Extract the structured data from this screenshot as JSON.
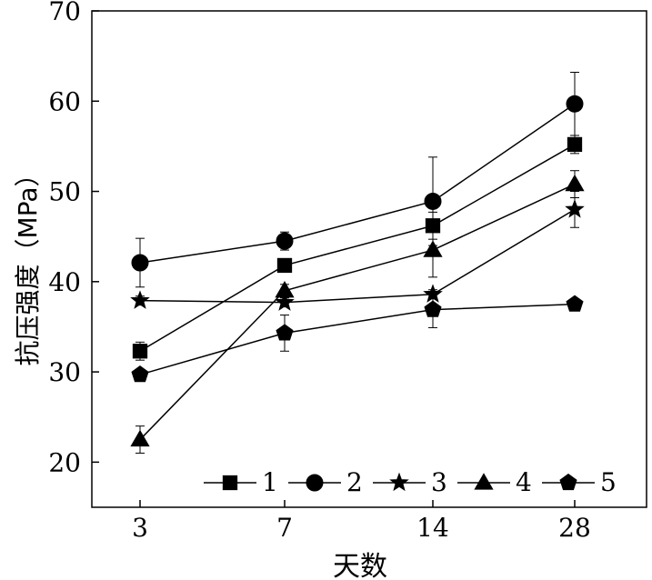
{
  "chart_data": {
    "type": "line",
    "title": "",
    "xlabel": "天数",
    "ylabel": "抗压强度（MPa）",
    "categories": [
      "3",
      "7",
      "14",
      "28"
    ],
    "ylim": [
      15,
      70
    ],
    "yticks": [
      20,
      30,
      40,
      50,
      60,
      70
    ],
    "grid": false,
    "legend_position": "bottom",
    "series": [
      {
        "name": "1",
        "marker": "square",
        "values": [
          32.3,
          41.8,
          46.2,
          55.2
        ],
        "errors": [
          1.0,
          0.5,
          1.5,
          1.0
        ]
      },
      {
        "name": "2",
        "marker": "circle",
        "values": [
          42.1,
          44.5,
          48.9,
          59.7
        ],
        "errors": [
          2.7,
          1.0,
          4.9,
          3.5
        ]
      },
      {
        "name": "3",
        "marker": "star",
        "values": [
          37.9,
          37.7,
          38.6,
          48.0
        ],
        "errors": [
          0.5,
          0.5,
          0.5,
          2.0
        ]
      },
      {
        "name": "4",
        "marker": "triangle",
        "values": [
          22.5,
          39.0,
          43.5,
          50.8
        ],
        "errors": [
          1.5,
          0.7,
          3.0,
          1.5
        ]
      },
      {
        "name": "5",
        "marker": "pentagon",
        "values": [
          29.7,
          34.3,
          36.9,
          37.5
        ],
        "errors": [
          0.5,
          2.0,
          2.0,
          0.5
        ]
      }
    ]
  }
}
